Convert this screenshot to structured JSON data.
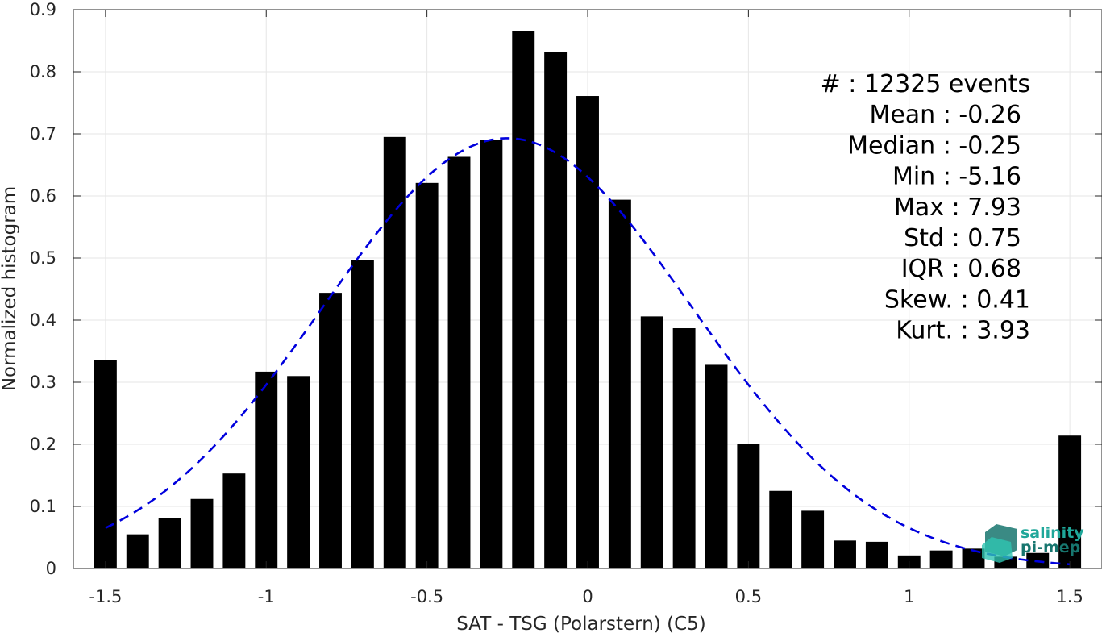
{
  "chart_data": {
    "type": "bar",
    "xlabel": "SAT - TSG (Polarstern) (C5)",
    "ylabel": "Normalized histogram",
    "xlim": [
      -1.6,
      1.6
    ],
    "ylim": [
      0,
      0.9
    ],
    "x_ticks": [
      -1.5,
      -1,
      -0.5,
      0,
      0.5,
      1,
      1.5
    ],
    "x_tick_labels": [
      "-1.5",
      "-1",
      "-0.5",
      "0",
      "0.5",
      "1",
      "1.5"
    ],
    "y_ticks": [
      0,
      0.1,
      0.2,
      0.3,
      0.4,
      0.5,
      0.6,
      0.7,
      0.8,
      0.9
    ],
    "y_tick_labels": [
      "0",
      "0.1",
      "0.2",
      "0.3",
      "0.4",
      "0.5",
      "0.6",
      "0.7",
      "0.8",
      "0.9"
    ],
    "grid": true,
    "bar_width": 0.07,
    "bins": [
      -1.5,
      -1.4,
      -1.3,
      -1.2,
      -1.1,
      -1.0,
      -0.9,
      -0.8,
      -0.7,
      -0.6,
      -0.5,
      -0.4,
      -0.3,
      -0.2,
      -0.1,
      0.0,
      0.1,
      0.2,
      0.3,
      0.4,
      0.5,
      0.6,
      0.7,
      0.8,
      0.9,
      1.0,
      1.1,
      1.2,
      1.3,
      1.4,
      1.5
    ],
    "values": [
      0.336,
      0.055,
      0.081,
      0.112,
      0.153,
      0.317,
      0.31,
      0.444,
      0.497,
      0.695,
      0.621,
      0.663,
      0.69,
      0.866,
      0.832,
      0.761,
      0.594,
      0.406,
      0.387,
      0.328,
      0.2,
      0.125,
      0.093,
      0.045,
      0.043,
      0.021,
      0.029,
      0.032,
      0.019,
      0.025,
      0.214
    ],
    "bar_color": "#000000",
    "gaussian_fit": {
      "mean": -0.25,
      "sigma": 0.575,
      "peak": 0.693,
      "x_range": [
        -1.5,
        1.5
      ],
      "color": "#0000dd",
      "style": "dashed"
    },
    "stats": [
      "#  : 12325 events",
      "Mean : -0.26",
      "Median : -0.25",
      "Min : -5.16",
      "Max : 7.93",
      "Std : 0.75",
      "IQR : 0.68",
      "Skew. : 0.41",
      "Kurt. : 3.93"
    ]
  },
  "logo": {
    "line1": "salinity",
    "line2": "pi-mep",
    "color_light": "#2fc4b2",
    "color_dark": "#17766f"
  }
}
